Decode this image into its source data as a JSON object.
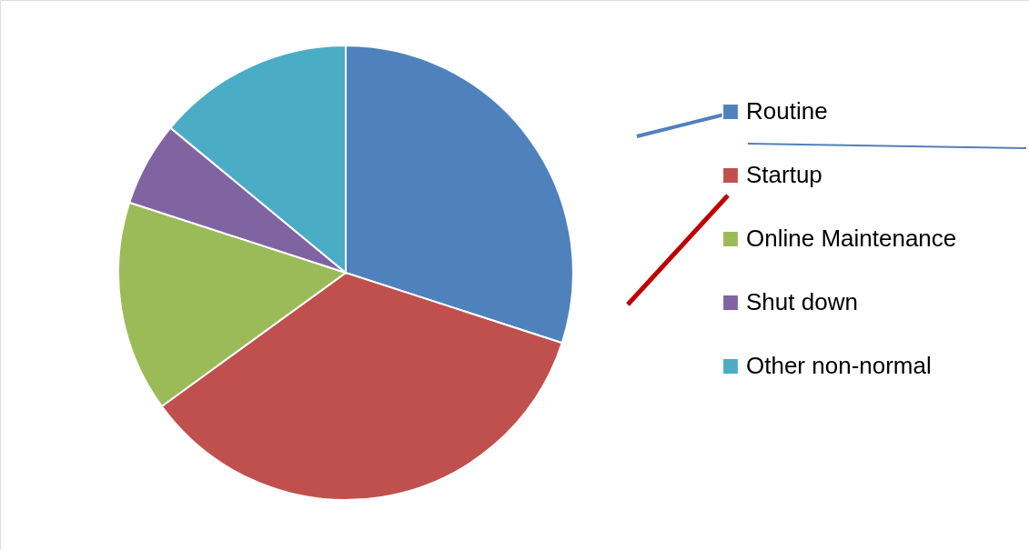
{
  "chart_data": {
    "type": "pie",
    "categories": [
      "Routine",
      "Startup",
      "Online Maintenance",
      "Shut down",
      "Other non-normal"
    ],
    "values": [
      30,
      35,
      15,
      6,
      14
    ],
    "colors": [
      "#4f81bd",
      "#c0504d",
      "#9bbb59",
      "#8064a2",
      "#4bacc6"
    ],
    "legend": "right"
  }
}
